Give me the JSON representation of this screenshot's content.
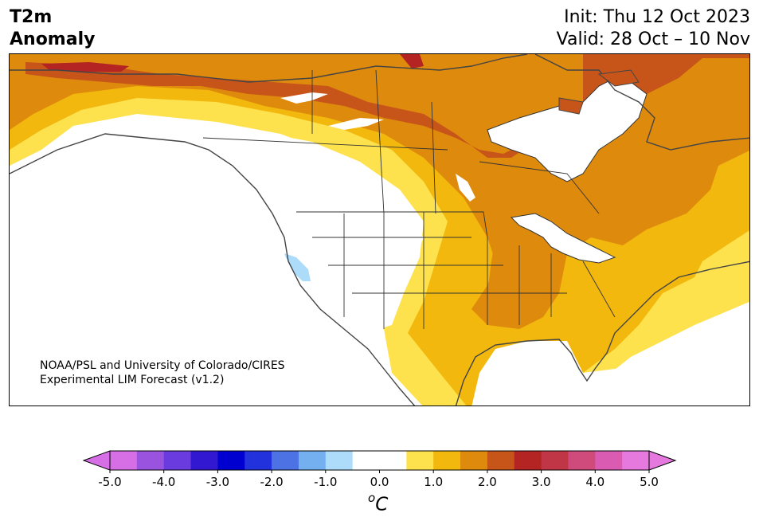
{
  "header": {
    "title_line1": "T2m",
    "title_line2": "Anomaly",
    "init_text": "Init: Thu 12 Oct 2023",
    "valid_text": "Valid: 28 Oct – 10 Nov"
  },
  "map": {
    "credit_line1": "NOAA/PSL and University of Colorado/CIRES",
    "credit_line2": "Experimental LIM Forecast (v1.2)"
  },
  "colorbar": {
    "ticks": [
      "-5.0",
      "-4.0",
      "-3.0",
      "-2.0",
      "-1.0",
      "0.0",
      "1.0",
      "2.0",
      "3.0",
      "4.0",
      "5.0"
    ],
    "unit_base": "C",
    "unit_sup": "o",
    "colors": [
      "#d66fe6",
      "#9a53df",
      "#6a3bdf",
      "#3318d2",
      "#0000d0",
      "#2233dd",
      "#4c72e4",
      "#74aff0",
      "#addcfa",
      "#ffffff",
      "#ffffff",
      "#fde24e",
      "#f2b80d",
      "#de8a0c",
      "#c7551a",
      "#b42423",
      "#c13646",
      "#cf4b7c",
      "#da5cb2",
      "#e679dd"
    ],
    "min_color": "#d66fe6",
    "max_color": "#e679dd"
  }
}
